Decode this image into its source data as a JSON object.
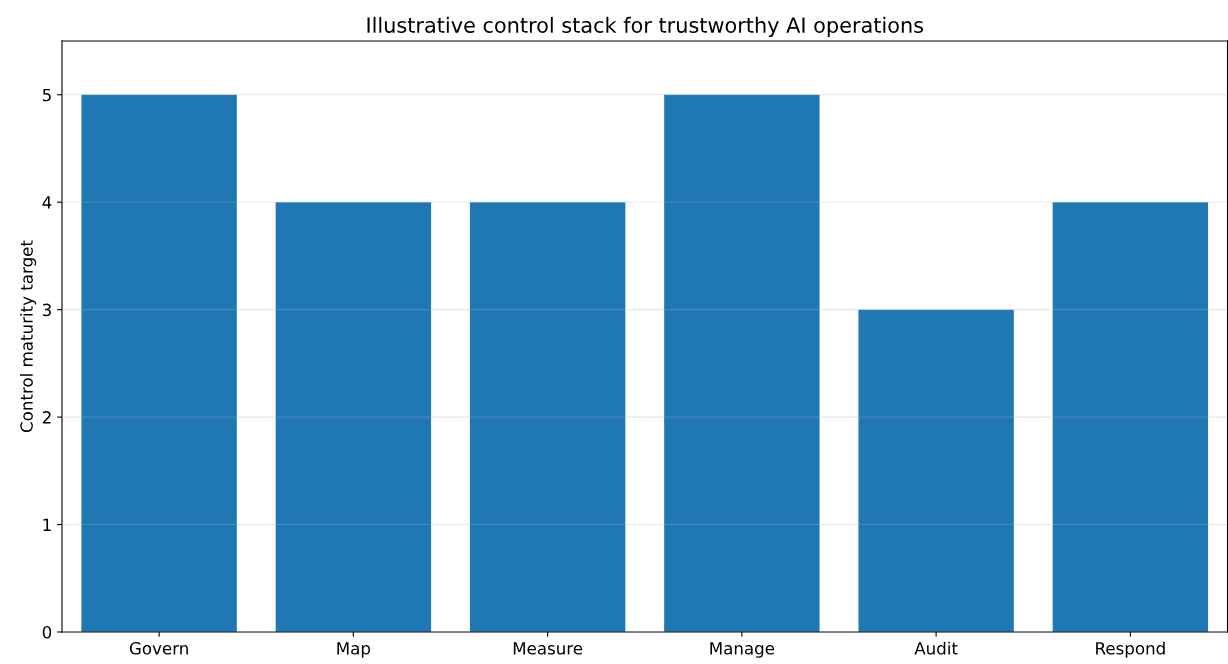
{
  "chart_data": {
    "type": "bar",
    "title": "Illustrative control stack for trustworthy AI operations",
    "ylabel": "Control maturity target",
    "categories": [
      "Govern",
      "Map",
      "Measure",
      "Manage",
      "Audit",
      "Respond"
    ],
    "values": [
      5,
      4,
      4,
      5,
      3,
      4
    ],
    "color": "#1f77b4",
    "ylim": [
      0,
      5.5
    ],
    "yticks": [
      0,
      1,
      2,
      3,
      4,
      5
    ],
    "grid": "y"
  }
}
